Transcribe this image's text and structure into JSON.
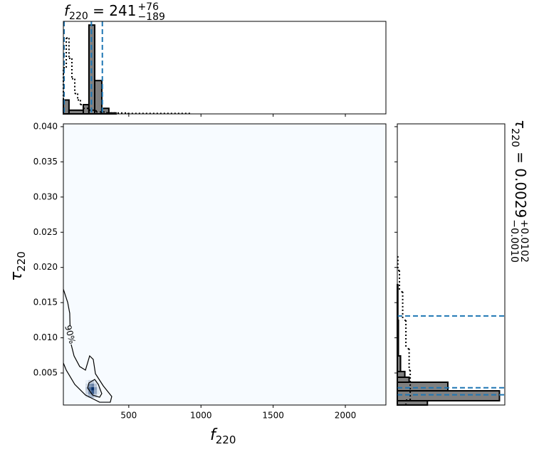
{
  "chart_data": {
    "type": "corner",
    "x_label": {
      "symbol": "f",
      "sub": "220"
    },
    "y_label": {
      "symbol": "τ",
      "sub": "220"
    },
    "xlim": [
      47,
      2281
    ],
    "xticks": [
      500,
      1000,
      1500,
      2000
    ],
    "ylim": [
      0.00045,
      0.0404
    ],
    "yticks": [
      0.005,
      {
        "value": 0.01,
        "label": "0.010"
      },
      0.015,
      {
        "value": 0.02,
        "label": "0.020"
      },
      0.025,
      {
        "value": 0.03,
        "label": "0.030"
      },
      0.035,
      {
        "value": 0.04,
        "label": "0.040"
      }
    ],
    "hist2d": {
      "background": "#f7fbff",
      "cmap": [
        "#f7fbff",
        "#08306b"
      ],
      "x_edges": [
        200,
        220,
        240,
        260,
        280,
        300
      ],
      "y_edges": [
        0.0015,
        0.002,
        0.0025,
        0.003,
        0.0035,
        0.004
      ],
      "values": [
        [
          0.1,
          0.3,
          0.35,
          0.2,
          0.05
        ],
        [
          0.2,
          0.55,
          0.8,
          0.4,
          0.1
        ],
        [
          0.25,
          0.7,
          1.0,
          0.45,
          0.1
        ],
        [
          0.15,
          0.5,
          0.6,
          0.25,
          0.05
        ],
        [
          0.05,
          0.2,
          0.25,
          0.1,
          0.02
        ]
      ]
    },
    "contours": [
      {
        "label": "90%",
        "x": [
          47,
          77,
          91,
          96,
          121,
          160,
          200,
          229,
          254,
          269,
          323,
          382,
          372,
          298,
          200,
          126,
          67,
          47
        ],
        "y": [
          0.0169,
          0.01502,
          0.0135,
          0.00946,
          0.00743,
          0.00592,
          0.00541,
          0.00743,
          0.00693,
          0.0049,
          0.00318,
          0.00166,
          0.00085,
          0.00085,
          0.00187,
          0.00338,
          0.00541,
          0.00642
        ]
      },
      {
        "x": [
          224,
          264,
          289,
          313,
          298,
          249,
          215
        ],
        "y": [
          0.00359,
          0.00409,
          0.00338,
          0.00207,
          0.00156,
          0.00187,
          0.00288
        ]
      }
    ],
    "top_hist": {
      "title": {
        "symbol": "f",
        "sub": "220",
        "equals": " = 241",
        "upper": "+76",
        "lower": "−189"
      },
      "ylim": [
        0,
        1
      ],
      "quantiles": [
        52,
        241,
        317
      ],
      "quantile_color": "#1f77b4",
      "series": [
        {
          "style": "filled",
          "color": "#808080",
          "bins": [
            47,
            86,
            185,
            224,
            264,
            313,
            362,
            412
          ],
          "values": [
            0.15,
            0.04,
            0.1,
            0.96,
            0.36,
            0.06,
            0.01
          ]
        },
        {
          "style": "dotted",
          "color": "#000000",
          "bins": [
            47,
            67,
            86,
            106,
            126,
            146,
            165,
            185,
            224,
            274,
            348,
            495,
            939
          ],
          "values": [
            0.5,
            0.82,
            0.6,
            0.38,
            0.22,
            0.15,
            0.1,
            0.06,
            0.04,
            0.02,
            0.01,
            0.005
          ]
        }
      ]
    },
    "right_hist": {
      "title": {
        "symbol": "τ",
        "sub": "220",
        "equals": " = 0.0029",
        "upper": "+0.0102",
        "lower": "−0.0010"
      },
      "xlim": [
        0,
        1
      ],
      "quantiles": [
        0.0019,
        0.0029,
        0.0131
      ],
      "quantile_color": "#1f77b4",
      "series": [
        {
          "style": "filled",
          "color": "#808080",
          "bins": [
            0.00045,
            0.00106,
            0.00247,
            0.00369,
            0.0044,
            0.00521,
            0.00743,
            0.01249,
            0.01755
          ],
          "values": [
            0.28,
            0.95,
            0.47,
            0.11,
            0.07,
            0.03,
            0.01,
            0.005
          ]
        },
        {
          "style": "dotted",
          "color": "#000000",
          "bins": [
            0.00045,
            0.00116,
            0.00338,
            0.00541,
            0.00845,
            0.01249,
            0.01654,
            0.01958,
            0.0216
          ],
          "values": [
            0.08,
            0.12,
            0.12,
            0.11,
            0.08,
            0.05,
            0.02,
            0.005
          ]
        }
      ]
    }
  }
}
